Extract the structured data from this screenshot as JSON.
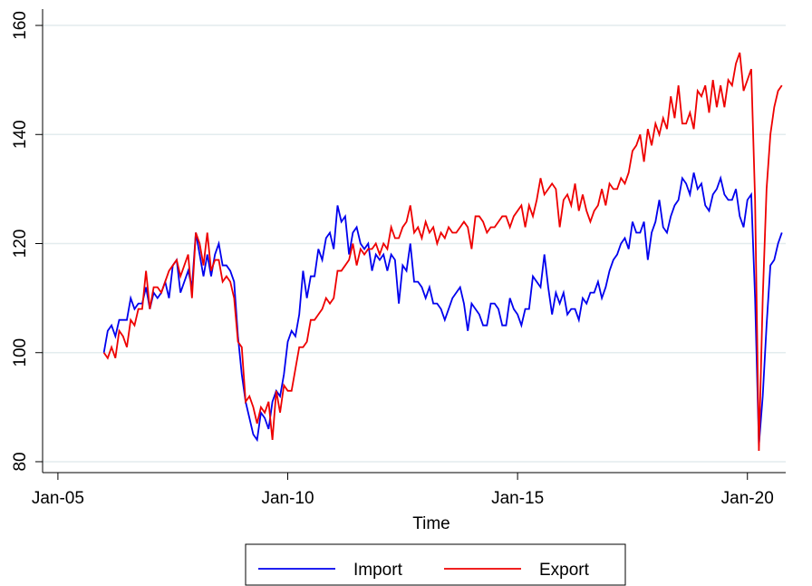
{
  "chart_data": {
    "type": "line",
    "x_label": "Time",
    "x": [
      "Jan-06",
      "Feb-06",
      "Mar-06",
      "Apr-06",
      "May-06",
      "Jun-06",
      "Jul-06",
      "Aug-06",
      "Sep-06",
      "Oct-06",
      "Nov-06",
      "Dec-06",
      "Jan-07",
      "Feb-07",
      "Mar-07",
      "Apr-07",
      "May-07",
      "Jun-07",
      "Jul-07",
      "Aug-07",
      "Sep-07",
      "Oct-07",
      "Nov-07",
      "Dec-07",
      "Jan-08",
      "Feb-08",
      "Mar-08",
      "Apr-08",
      "May-08",
      "Jun-08",
      "Jul-08",
      "Aug-08",
      "Sep-08",
      "Oct-08",
      "Nov-08",
      "Dec-08",
      "Jan-09",
      "Feb-09",
      "Mar-09",
      "Apr-09",
      "May-09",
      "Jun-09",
      "Jul-09",
      "Aug-09",
      "Sep-09",
      "Oct-09",
      "Nov-09",
      "Dec-09",
      "Jan-10",
      "Feb-10",
      "Mar-10",
      "Apr-10",
      "May-10",
      "Jun-10",
      "Jul-10",
      "Aug-10",
      "Sep-10",
      "Oct-10",
      "Nov-10",
      "Dec-10",
      "Jan-11",
      "Feb-11",
      "Mar-11",
      "Apr-11",
      "May-11",
      "Jun-11",
      "Jul-11",
      "Aug-11",
      "Sep-11",
      "Oct-11",
      "Nov-11",
      "Dec-11",
      "Jan-12",
      "Feb-12",
      "Mar-12",
      "Apr-12",
      "May-12",
      "Jun-12",
      "Jul-12",
      "Aug-12",
      "Sep-12",
      "Oct-12",
      "Nov-12",
      "Dec-12",
      "Jan-13",
      "Feb-13",
      "Mar-13",
      "Apr-13",
      "May-13",
      "Jun-13",
      "Jul-13",
      "Aug-13",
      "Sep-13",
      "Oct-13",
      "Nov-13",
      "Dec-13",
      "Jan-14",
      "Feb-14",
      "Mar-14",
      "Apr-14",
      "May-14",
      "Jun-14",
      "Jul-14",
      "Aug-14",
      "Sep-14",
      "Oct-14",
      "Nov-14",
      "Dec-14",
      "Jan-15",
      "Feb-15",
      "Mar-15",
      "Apr-15",
      "May-15",
      "Jun-15",
      "Jul-15",
      "Aug-15",
      "Sep-15",
      "Oct-15",
      "Nov-15",
      "Dec-15",
      "Jan-16",
      "Feb-16",
      "Mar-16",
      "Apr-16",
      "May-16",
      "Jun-16",
      "Jul-16",
      "Aug-16",
      "Sep-16",
      "Oct-16",
      "Nov-16",
      "Dec-16",
      "Jan-17",
      "Feb-17",
      "Mar-17",
      "Apr-17",
      "May-17",
      "Jun-17",
      "Jul-17",
      "Aug-17",
      "Sep-17",
      "Oct-17",
      "Nov-17",
      "Dec-17",
      "Jan-18",
      "Feb-18",
      "Mar-18",
      "Apr-18",
      "May-18",
      "Jun-18",
      "Jul-18",
      "Aug-18",
      "Sep-18",
      "Oct-18",
      "Nov-18",
      "Dec-18",
      "Jan-19",
      "Feb-19",
      "Mar-19",
      "Apr-19",
      "May-19",
      "Jun-19",
      "Jul-19",
      "Aug-19",
      "Sep-19",
      "Oct-19",
      "Nov-19",
      "Dec-19",
      "Jan-20",
      "Feb-20",
      "Mar-20",
      "Apr-20",
      "May-20",
      "Jun-20",
      "Jul-20",
      "Aug-20",
      "Sep-20",
      "Oct-20"
    ],
    "series": [
      {
        "name": "Import",
        "color": "#0000ee",
        "values": [
          100,
          104,
          105,
          103,
          106,
          106,
          106,
          110,
          108,
          109,
          109,
          112,
          108,
          111,
          110,
          111,
          113,
          110,
          116,
          117,
          111,
          113,
          115,
          112,
          122,
          118,
          114,
          118,
          114,
          118,
          120,
          116,
          116,
          115,
          113,
          103,
          96,
          91,
          88,
          85,
          84,
          89,
          88,
          86,
          91,
          93,
          92,
          96,
          102,
          104,
          103,
          107,
          115,
          110,
          114,
          114,
          119,
          117,
          121,
          122,
          119,
          127,
          124,
          125,
          118,
          122,
          123,
          120,
          119,
          120,
          115,
          118,
          117,
          118,
          115,
          118,
          117,
          109,
          116,
          115,
          120,
          113,
          113,
          112,
          110,
          112,
          109,
          109,
          108,
          106,
          108,
          110,
          111,
          112,
          109,
          104,
          109,
          108,
          107,
          105,
          105,
          109,
          109,
          108,
          105,
          105,
          110,
          108,
          107,
          105,
          108,
          108,
          114,
          113,
          112,
          118,
          112,
          107,
          111,
          109,
          111,
          107,
          108,
          108,
          106,
          110,
          109,
          111,
          111,
          113,
          110,
          112,
          115,
          117,
          118,
          120,
          121,
          119,
          124,
          122,
          122,
          124,
          117,
          122,
          124,
          128,
          123,
          122,
          125,
          127,
          128,
          132,
          131,
          129,
          133,
          130,
          131,
          127,
          126,
          129,
          130,
          132,
          129,
          128,
          128,
          130,
          125,
          123,
          128,
          129,
          110,
          83,
          92,
          105,
          116,
          117,
          120,
          122
        ]
      },
      {
        "name": "Export",
        "color": "#ee0000",
        "values": [
          100,
          99,
          101,
          99,
          104,
          103,
          101,
          106,
          105,
          108,
          108,
          115,
          108,
          112,
          112,
          111,
          113,
          115,
          116,
          117,
          114,
          116,
          118,
          110,
          122,
          120,
          116,
          122,
          115,
          117,
          117,
          113,
          114,
          113,
          110,
          102,
          101,
          91,
          92,
          90,
          87,
          90,
          89,
          91,
          84,
          93,
          89,
          94,
          93,
          93,
          97,
          101,
          101,
          102,
          106,
          106,
          107,
          108,
          110,
          109,
          110,
          115,
          115,
          116,
          117,
          120,
          116,
          119,
          118,
          119,
          119,
          120,
          118,
          120,
          119,
          123,
          121,
          121,
          123,
          124,
          127,
          122,
          123,
          121,
          124,
          122,
          123,
          120,
          122,
          121,
          123,
          122,
          122,
          123,
          124,
          123,
          119,
          125,
          125,
          124,
          122,
          123,
          123,
          124,
          125,
          125,
          123,
          125,
          126,
          127,
          123,
          127,
          125,
          128,
          132,
          129,
          130,
          131,
          130,
          123,
          128,
          129,
          127,
          131,
          126,
          129,
          126,
          124,
          126,
          127,
          130,
          127,
          131,
          130,
          130,
          132,
          131,
          133,
          137,
          138,
          140,
          135,
          141,
          138,
          142,
          140,
          143,
          141,
          147,
          143,
          149,
          142,
          142,
          144,
          141,
          148,
          147,
          149,
          144,
          150,
          145,
          149,
          145,
          150,
          149,
          153,
          155,
          148,
          150,
          152,
          128,
          82,
          110,
          130,
          140,
          145,
          148,
          149
        ]
      }
    ],
    "xlim": [
      "Sep-04",
      "Nov-20"
    ],
    "xticks": [
      "Jan-05",
      "Jan-10",
      "Jan-15",
      "Jan-20"
    ],
    "ylim": [
      78,
      163
    ],
    "yticks": [
      80,
      100,
      120,
      140,
      160
    ],
    "grid": true
  }
}
